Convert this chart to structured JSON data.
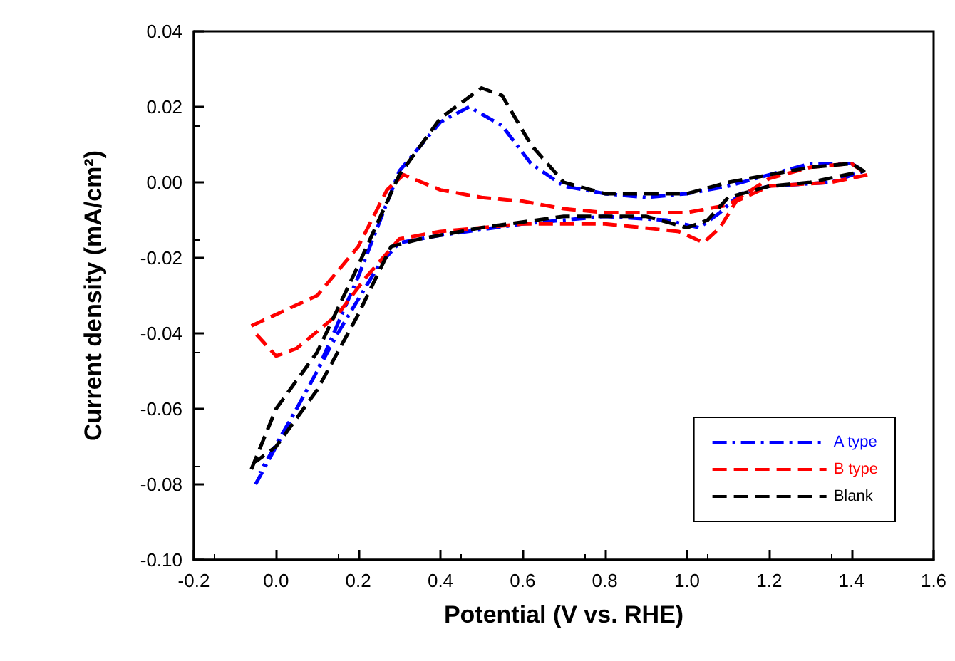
{
  "chart_data": {
    "type": "line",
    "xlabel": "Potential (V vs. RHE)",
    "ylabel": "Current density (mA/cm²)",
    "xlim": [
      -0.2,
      1.6
    ],
    "xticks": [
      {
        "value": -0.2,
        "label": "-0.2"
      },
      {
        "value": 0,
        "label": "0.0"
      },
      {
        "value": 0.2,
        "label": "0.2"
      },
      {
        "value": 0.4,
        "label": "0.4"
      },
      {
        "value": 0.6,
        "label": "0.6"
      },
      {
        "value": 0.8,
        "label": "0.8"
      },
      {
        "value": 1,
        "label": "1.0"
      },
      {
        "value": 1.2,
        "label": "1.2"
      },
      {
        "value": 1.4,
        "label": "1.4"
      },
      {
        "value": 1.6,
        "label": "1.6"
      }
    ],
    "ylim": [
      -0.1,
      0.04
    ],
    "yticks": [
      {
        "value": -0.1,
        "label": "-0.10"
      },
      {
        "value": -0.08,
        "label": "-0.08"
      },
      {
        "value": -0.06,
        "label": "-0.06"
      },
      {
        "value": -0.04,
        "label": "-0.04"
      },
      {
        "value": -0.02,
        "label": "-0.02"
      },
      {
        "value": 0,
        "label": "0.00"
      },
      {
        "value": 0.02,
        "label": "0.02"
      },
      {
        "value": 0.04,
        "label": "0.04"
      }
    ],
    "grid": false,
    "legend": "bottom right",
    "marker": "none",
    "series": [
      {
        "name": "A type",
        "color": "#0000ff",
        "line_style": "dashdot",
        "x": [
          -0.05,
          0.1,
          0.2,
          0.3,
          0.4,
          0.47,
          0.55,
          0.62,
          0.7,
          0.8,
          0.9,
          1.0,
          1.1,
          1.2,
          1.3,
          1.4,
          1.43,
          1.35,
          1.2,
          1.13,
          1.08,
          1.03,
          0.95,
          0.8,
          0.6,
          0.4,
          0.3,
          0.25,
          0.15,
          0.05,
          -0.04
        ],
        "values": [
          -0.08,
          -0.05,
          -0.025,
          0.003,
          0.016,
          0.02,
          0.015,
          0.005,
          -0.001,
          -0.003,
          -0.004,
          -0.003,
          -0.001,
          0.002,
          0.005,
          0.005,
          0.003,
          0.0,
          -0.001,
          -0.003,
          -0.008,
          -0.012,
          -0.01,
          -0.009,
          -0.011,
          -0.014,
          -0.016,
          -0.022,
          -0.04,
          -0.06,
          -0.077
        ]
      },
      {
        "name": "B type",
        "color": "#ff0000",
        "line_style": "dashed",
        "x": [
          -0.06,
          0.0,
          0.1,
          0.2,
          0.27,
          0.31,
          0.4,
          0.5,
          0.6,
          0.7,
          0.8,
          1.0,
          1.1,
          1.2,
          1.3,
          1.4,
          1.44,
          1.35,
          1.2,
          1.12,
          1.08,
          1.04,
          0.98,
          0.8,
          0.6,
          0.4,
          0.3,
          0.22,
          0.15,
          0.05,
          0.0,
          -0.05
        ],
        "values": [
          -0.038,
          -0.035,
          -0.03,
          -0.017,
          -0.002,
          0.002,
          -0.002,
          -0.004,
          -0.005,
          -0.007,
          -0.008,
          -0.008,
          -0.006,
          0.001,
          0.004,
          0.005,
          0.002,
          0.0,
          -0.001,
          -0.005,
          -0.012,
          -0.016,
          -0.013,
          -0.011,
          -0.011,
          -0.013,
          -0.015,
          -0.025,
          -0.035,
          -0.044,
          -0.046,
          -0.04
        ]
      },
      {
        "name": "Blank",
        "color": "#000000",
        "line_style": "dashed",
        "x": [
          -0.06,
          0.0,
          0.1,
          0.2,
          0.3,
          0.4,
          0.5,
          0.55,
          0.62,
          0.7,
          0.8,
          1.0,
          1.1,
          1.2,
          1.3,
          1.4,
          1.43,
          1.3,
          1.2,
          1.1,
          1.05,
          1.0,
          0.9,
          0.7,
          0.5,
          0.35,
          0.28,
          0.2,
          0.1,
          0.0,
          -0.05
        ],
        "values": [
          -0.076,
          -0.06,
          -0.045,
          -0.022,
          0.002,
          0.017,
          0.025,
          0.023,
          0.01,
          0.0,
          -0.003,
          -0.003,
          0.0,
          0.002,
          0.004,
          0.005,
          0.003,
          0.0,
          -0.001,
          -0.004,
          -0.01,
          -0.012,
          -0.009,
          -0.009,
          -0.012,
          -0.015,
          -0.017,
          -0.035,
          -0.055,
          -0.07,
          -0.074
        ]
      }
    ]
  }
}
